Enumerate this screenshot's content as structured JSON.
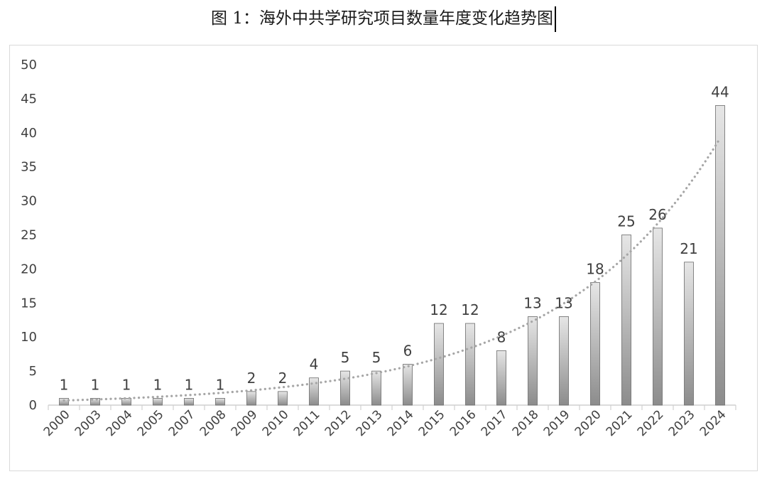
{
  "caption": "图 1：海外中共学研究项目数量年度变化趋势图",
  "chart_data": {
    "type": "bar",
    "title": "",
    "xlabel": "",
    "ylabel": "",
    "ylim": [
      0,
      50
    ],
    "yticks": [
      0,
      5,
      10,
      15,
      20,
      25,
      30,
      35,
      40,
      45,
      50
    ],
    "categories": [
      "2000",
      "2003",
      "2004",
      "2005",
      "2007",
      "2008",
      "2009",
      "2010",
      "2011",
      "2012",
      "2013",
      "2014",
      "2015",
      "2016",
      "2017",
      "2018",
      "2019",
      "2020",
      "2021",
      "2022",
      "2023",
      "2024"
    ],
    "values": [
      1,
      1,
      1,
      1,
      1,
      1,
      2,
      2,
      4,
      5,
      5,
      6,
      12,
      12,
      8,
      13,
      13,
      18,
      25,
      26,
      21,
      44
    ],
    "trendline": {
      "type": "exponential",
      "style": "dotted"
    },
    "grid": false,
    "legend": "none",
    "colors": {
      "bar_top": "#e6e6e6",
      "bar_bottom": "#8c8c8c",
      "bar_stroke": "#6b6b6b",
      "trend": "#a6a6a6",
      "axis": "#d0d0d0"
    }
  }
}
